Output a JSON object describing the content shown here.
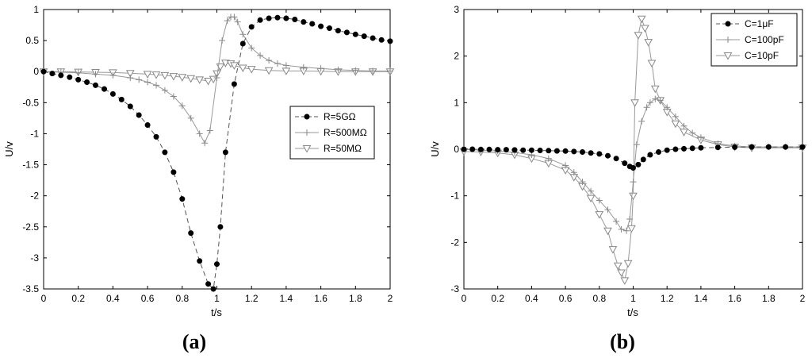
{
  "chart_data": [
    {
      "type": "line",
      "panel_label": "(a)",
      "xlabel": "t/s",
      "ylabel": "U/v",
      "xlim": [
        0,
        2
      ],
      "ylim": [
        -3.5,
        1
      ],
      "xticks": [
        "0",
        "0.2",
        "0.4",
        "0.6",
        "0.8",
        "1",
        "1.2",
        "1.4",
        "1.6",
        "1.8",
        "2"
      ],
      "yticks": [
        "1",
        "0.5",
        "0",
        "-0.5",
        "-1",
        "-1.5",
        "-2",
        "-2.5",
        "-3",
        "-3.5"
      ],
      "legend_position": "center-right",
      "series": [
        {
          "name": "R=5GΩ",
          "marker": "filled-circle",
          "x": [
            0,
            0.05,
            0.1,
            0.15,
            0.2,
            0.25,
            0.3,
            0.35,
            0.4,
            0.45,
            0.5,
            0.55,
            0.6,
            0.65,
            0.7,
            0.75,
            0.8,
            0.85,
            0.9,
            0.95,
            0.98,
            1.0,
            1.02,
            1.05,
            1.1,
            1.15,
            1.2,
            1.25,
            1.3,
            1.35,
            1.4,
            1.45,
            1.5,
            1.55,
            1.6,
            1.65,
            1.7,
            1.75,
            1.8,
            1.85,
            1.9,
            1.95,
            2.0
          ],
          "y": [
            0,
            -0.03,
            -0.06,
            -0.09,
            -0.13,
            -0.17,
            -0.22,
            -0.28,
            -0.36,
            -0.45,
            -0.56,
            -0.7,
            -0.86,
            -1.05,
            -1.3,
            -1.62,
            -2.05,
            -2.6,
            -3.05,
            -3.42,
            -3.5,
            -3.1,
            -2.5,
            -1.3,
            -0.2,
            0.45,
            0.72,
            0.83,
            0.86,
            0.87,
            0.86,
            0.84,
            0.8,
            0.77,
            0.73,
            0.7,
            0.66,
            0.63,
            0.6,
            0.57,
            0.54,
            0.51,
            0.49
          ]
        },
        {
          "name": "R=500MΩ",
          "marker": "plus",
          "x": [
            0,
            0.1,
            0.2,
            0.3,
            0.4,
            0.5,
            0.55,
            0.6,
            0.65,
            0.7,
            0.75,
            0.8,
            0.85,
            0.9,
            0.93,
            0.96,
            1.0,
            1.03,
            1.06,
            1.08,
            1.1,
            1.12,
            1.15,
            1.2,
            1.25,
            1.3,
            1.35,
            1.4,
            1.5,
            1.6,
            1.7,
            1.8,
            1.9,
            2.0
          ],
          "y": [
            0,
            -0.01,
            -0.02,
            -0.04,
            -0.06,
            -0.1,
            -0.13,
            -0.17,
            -0.22,
            -0.3,
            -0.4,
            -0.55,
            -0.75,
            -1.0,
            -1.15,
            -0.95,
            -0.1,
            0.5,
            0.82,
            0.88,
            0.88,
            0.8,
            0.6,
            0.38,
            0.26,
            0.18,
            0.13,
            0.1,
            0.07,
            0.05,
            0.03,
            0.02,
            0.01,
            0.01
          ]
        },
        {
          "name": "R=50MΩ",
          "marker": "open-triangle-down",
          "x": [
            0,
            0.1,
            0.2,
            0.3,
            0.4,
            0.5,
            0.6,
            0.65,
            0.7,
            0.75,
            0.8,
            0.85,
            0.9,
            0.95,
            0.98,
            1.0,
            1.02,
            1.05,
            1.08,
            1.1,
            1.15,
            1.2,
            1.3,
            1.4,
            1.5,
            1.6,
            1.7,
            1.8,
            1.9,
            2.0
          ],
          "y": [
            0,
            0,
            -0.005,
            -0.01,
            -0.015,
            -0.025,
            -0.04,
            -0.05,
            -0.06,
            -0.075,
            -0.09,
            -0.11,
            -0.13,
            -0.15,
            -0.12,
            -0.03,
            0.08,
            0.14,
            0.13,
            0.1,
            0.06,
            0.04,
            0.02,
            0.01,
            0.01,
            0.005,
            0,
            0,
            0,
            0
          ]
        }
      ]
    },
    {
      "type": "line",
      "panel_label": "(b)",
      "xlabel": "t/s",
      "ylabel": "U/v",
      "xlim": [
        0,
        2
      ],
      "ylim": [
        -3,
        3
      ],
      "xticks": [
        "0",
        "0.2",
        "0.4",
        "0.6",
        "0.8",
        "1",
        "1.2",
        "1.4",
        "1.6",
        "1.8",
        "2"
      ],
      "yticks": [
        "3",
        "2",
        "1",
        "0",
        "-1",
        "-2",
        "-3"
      ],
      "legend_position": "top-right",
      "series": [
        {
          "name": "C=1μF",
          "marker": "filled-circle",
          "x": [
            0,
            0.05,
            0.1,
            0.15,
            0.2,
            0.25,
            0.3,
            0.35,
            0.4,
            0.45,
            0.5,
            0.55,
            0.6,
            0.65,
            0.7,
            0.75,
            0.8,
            0.85,
            0.9,
            0.95,
            0.98,
            1.0,
            1.03,
            1.06,
            1.1,
            1.15,
            1.2,
            1.25,
            1.3,
            1.35,
            1.4,
            1.5,
            1.6,
            1.7,
            1.8,
            1.9,
            2.0
          ],
          "y": [
            0,
            0,
            -0.005,
            -0.005,
            -0.01,
            -0.01,
            -0.015,
            -0.02,
            -0.02,
            -0.025,
            -0.03,
            -0.035,
            -0.04,
            -0.05,
            -0.06,
            -0.08,
            -0.1,
            -0.14,
            -0.2,
            -0.3,
            -0.37,
            -0.4,
            -0.33,
            -0.22,
            -0.12,
            -0.06,
            -0.02,
            0,
            0.01,
            0.02,
            0.03,
            0.04,
            0.045,
            0.05,
            0.05,
            0.05,
            0.05
          ]
        },
        {
          "name": "C=100pF",
          "marker": "plus",
          "x": [
            0,
            0.1,
            0.2,
            0.3,
            0.4,
            0.5,
            0.6,
            0.65,
            0.7,
            0.75,
            0.8,
            0.85,
            0.9,
            0.93,
            0.96,
            0.98,
            1.0,
            1.02,
            1.05,
            1.08,
            1.1,
            1.13,
            1.16,
            1.2,
            1.25,
            1.3,
            1.35,
            1.4,
            1.5,
            1.6,
            1.7,
            1.8,
            1.9,
            2.0
          ],
          "y": [
            0,
            -0.02,
            -0.04,
            -0.07,
            -0.12,
            -0.2,
            -0.35,
            -0.5,
            -0.7,
            -0.9,
            -1.1,
            -1.3,
            -1.55,
            -1.72,
            -1.75,
            -1.5,
            -0.7,
            0.1,
            0.6,
            0.9,
            1.0,
            1.08,
            1.05,
            0.9,
            0.7,
            0.5,
            0.35,
            0.25,
            0.12,
            0.07,
            0.05,
            0.05,
            0.05,
            0.05
          ]
        },
        {
          "name": "C=10pF",
          "marker": "open-triangle-down",
          "x": [
            0,
            0.1,
            0.2,
            0.3,
            0.4,
            0.5,
            0.6,
            0.65,
            0.7,
            0.75,
            0.8,
            0.85,
            0.88,
            0.91,
            0.93,
            0.95,
            0.97,
            0.99,
            1.0,
            1.01,
            1.03,
            1.05,
            1.07,
            1.09,
            1.11,
            1.13,
            1.16,
            1.2,
            1.25,
            1.3,
            1.4,
            1.5,
            1.6,
            1.7,
            2.0
          ],
          "y": [
            -0.05,
            -0.06,
            -0.08,
            -0.12,
            -0.2,
            -0.3,
            -0.45,
            -0.6,
            -0.8,
            -1.05,
            -1.4,
            -1.75,
            -2.15,
            -2.5,
            -2.65,
            -2.82,
            -2.45,
            -1.7,
            -1.0,
            1.0,
            2.45,
            2.8,
            2.6,
            2.3,
            1.85,
            1.3,
            1.05,
            0.8,
            0.55,
            0.37,
            0.2,
            0.1,
            0.05,
            0.03,
            0.03
          ]
        }
      ]
    }
  ]
}
